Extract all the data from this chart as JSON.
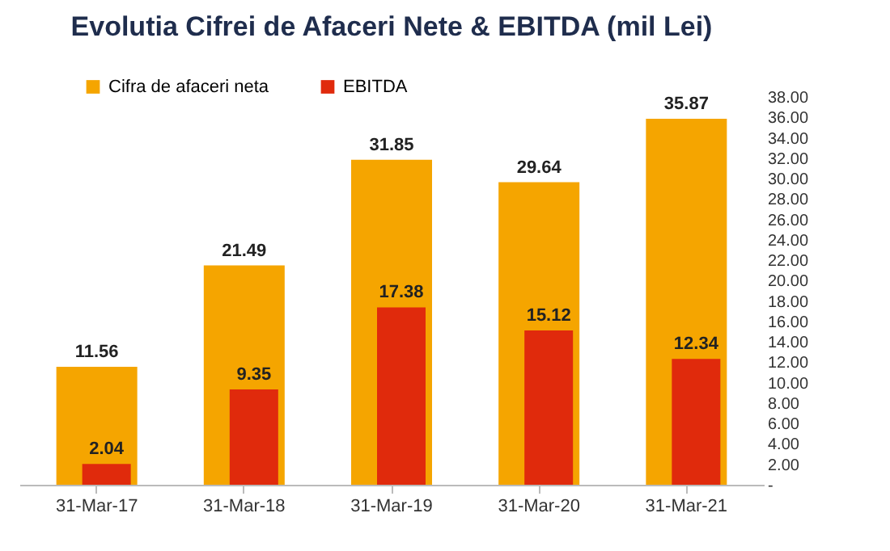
{
  "chart_data": {
    "type": "bar",
    "title": "Evolutia  Cifrei de Afaceri Nete & EBITDA  (mil Lei)",
    "categories": [
      "31-Mar-17",
      "31-Mar-18",
      "31-Mar-19",
      "31-Mar-20",
      "31-Mar-21"
    ],
    "series": [
      {
        "name": "Cifra de afaceri neta",
        "color": "#f5a500",
        "values": [
          11.56,
          21.49,
          31.85,
          29.64,
          35.87
        ]
      },
      {
        "name": "EBITDA",
        "color": "#e02a0c",
        "values": [
          2.04,
          9.35,
          17.38,
          15.12,
          12.34
        ]
      }
    ],
    "ylim": [
      0,
      38
    ],
    "yticks": [
      {
        "value": 0,
        "label": "-"
      },
      {
        "value": 2,
        "label": "2.00"
      },
      {
        "value": 4,
        "label": "4.00"
      },
      {
        "value": 6,
        "label": "6.00"
      },
      {
        "value": 8,
        "label": "8.00"
      },
      {
        "value": 10,
        "label": "10.00"
      },
      {
        "value": 12,
        "label": "12.00"
      },
      {
        "value": 14,
        "label": "14.00"
      },
      {
        "value": 16,
        "label": "16.00"
      },
      {
        "value": 18,
        "label": "18.00"
      },
      {
        "value": 20,
        "label": "20.00"
      },
      {
        "value": 22,
        "label": "22.00"
      },
      {
        "value": 24,
        "label": "24.00"
      },
      {
        "value": 26,
        "label": "26.00"
      },
      {
        "value": 28,
        "label": "28.00"
      },
      {
        "value": 30,
        "label": "30.00"
      },
      {
        "value": 32,
        "label": "32.00"
      },
      {
        "value": 34,
        "label": "34.00"
      },
      {
        "value": 36,
        "label": "36.00"
      },
      {
        "value": 38,
        "label": "38.00"
      }
    ],
    "data_labels": true,
    "grid": false,
    "legend": "top"
  }
}
